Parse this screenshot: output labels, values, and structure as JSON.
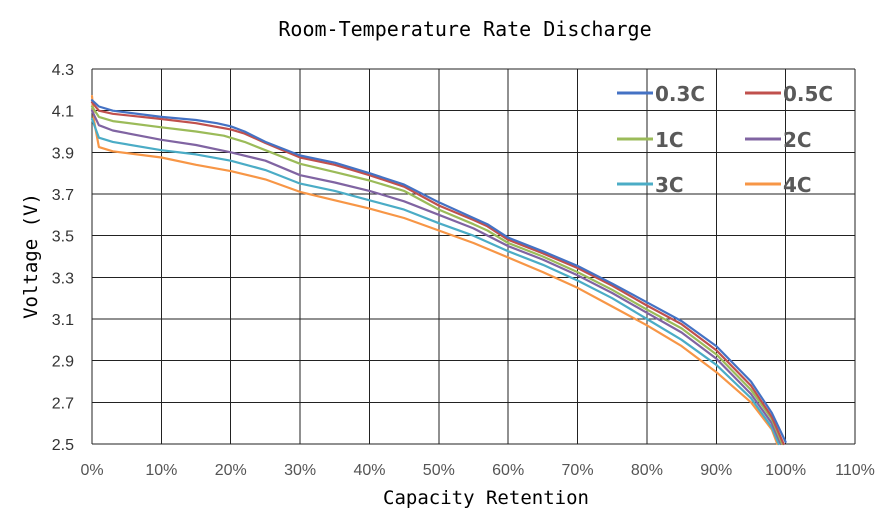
{
  "chart_data": {
    "type": "line",
    "title": "Room-Temperature Rate Discharge",
    "xlabel": "Capacity Retention",
    "ylabel": "Voltage (V)",
    "xlim": [
      0,
      110
    ],
    "ylim": [
      2.5,
      4.3
    ],
    "xticks": [
      0,
      10,
      20,
      30,
      40,
      50,
      60,
      70,
      80,
      90,
      100,
      110
    ],
    "xtick_labels": [
      "0%",
      "10%",
      "20%",
      "30%",
      "40%",
      "50%",
      "60%",
      "70%",
      "80%",
      "90%",
      "100%",
      "110%"
    ],
    "yticks": [
      2.5,
      2.7,
      2.9,
      3.1,
      3.3,
      3.5,
      3.7,
      3.9,
      4.1,
      4.3
    ],
    "ytick_labels": [
      "2.5",
      "2.7",
      "2.9",
      "3.1",
      "3.3",
      "3.5",
      "3.7",
      "3.9",
      "4.1",
      "4.3"
    ],
    "grid": true,
    "legend_position": "top-right",
    "series": [
      {
        "name": "0.3C",
        "color": "#4472C4",
        "points": [
          [
            0,
            4.15
          ],
          [
            1,
            4.12
          ],
          [
            3,
            4.1
          ],
          [
            10,
            4.07
          ],
          [
            15,
            4.055
          ],
          [
            18,
            4.04
          ],
          [
            20,
            4.025
          ],
          [
            22,
            4.0
          ],
          [
            25,
            3.95
          ],
          [
            30,
            3.885
          ],
          [
            35,
            3.85
          ],
          [
            40,
            3.8
          ],
          [
            45,
            3.745
          ],
          [
            50,
            3.66
          ],
          [
            55,
            3.585
          ],
          [
            57,
            3.555
          ],
          [
            60,
            3.49
          ],
          [
            65,
            3.425
          ],
          [
            70,
            3.355
          ],
          [
            75,
            3.27
          ],
          [
            80,
            3.18
          ],
          [
            85,
            3.09
          ],
          [
            90,
            2.97
          ],
          [
            95,
            2.8
          ],
          [
            98,
            2.65
          ],
          [
            100,
            2.51
          ]
        ]
      },
      {
        "name": "0.5C",
        "color": "#C0504D",
        "points": [
          [
            0,
            4.14
          ],
          [
            1,
            4.1
          ],
          [
            3,
            4.085
          ],
          [
            10,
            4.06
          ],
          [
            15,
            4.04
          ],
          [
            20,
            4.01
          ],
          [
            22,
            3.99
          ],
          [
            25,
            3.945
          ],
          [
            30,
            3.875
          ],
          [
            35,
            3.84
          ],
          [
            40,
            3.79
          ],
          [
            45,
            3.735
          ],
          [
            50,
            3.645
          ],
          [
            55,
            3.575
          ],
          [
            57,
            3.545
          ],
          [
            60,
            3.48
          ],
          [
            65,
            3.415
          ],
          [
            70,
            3.345
          ],
          [
            75,
            3.26
          ],
          [
            80,
            3.165
          ],
          [
            85,
            3.075
          ],
          [
            90,
            2.95
          ],
          [
            95,
            2.78
          ],
          [
            98,
            2.63
          ],
          [
            99.7,
            2.5
          ]
        ]
      },
      {
        "name": "1C",
        "color": "#9BBB59",
        "points": [
          [
            0,
            4.12
          ],
          [
            1,
            4.07
          ],
          [
            3,
            4.05
          ],
          [
            10,
            4.02
          ],
          [
            15,
            4.0
          ],
          [
            19,
            3.98
          ],
          [
            22,
            3.95
          ],
          [
            25,
            3.91
          ],
          [
            30,
            3.845
          ],
          [
            35,
            3.805
          ],
          [
            40,
            3.765
          ],
          [
            45,
            3.715
          ],
          [
            50,
            3.625
          ],
          [
            55,
            3.555
          ],
          [
            57,
            3.525
          ],
          [
            60,
            3.465
          ],
          [
            65,
            3.4
          ],
          [
            70,
            3.325
          ],
          [
            75,
            3.24
          ],
          [
            80,
            3.145
          ],
          [
            85,
            3.055
          ],
          [
            90,
            2.93
          ],
          [
            95,
            2.76
          ],
          [
            98,
            2.62
          ],
          [
            99.5,
            2.5
          ]
        ]
      },
      {
        "name": "2C",
        "color": "#8064A2",
        "points": [
          [
            0,
            4.1
          ],
          [
            1,
            4.03
          ],
          [
            3,
            4.005
          ],
          [
            10,
            3.96
          ],
          [
            15,
            3.935
          ],
          [
            20,
            3.9
          ],
          [
            25,
            3.86
          ],
          [
            30,
            3.79
          ],
          [
            35,
            3.755
          ],
          [
            40,
            3.715
          ],
          [
            45,
            3.665
          ],
          [
            50,
            3.6
          ],
          [
            55,
            3.535
          ],
          [
            60,
            3.45
          ],
          [
            65,
            3.385
          ],
          [
            70,
            3.31
          ],
          [
            75,
            3.225
          ],
          [
            80,
            3.13
          ],
          [
            85,
            3.035
          ],
          [
            90,
            2.91
          ],
          [
            95,
            2.74
          ],
          [
            98,
            2.6
          ],
          [
            99.3,
            2.5
          ]
        ]
      },
      {
        "name": "3C",
        "color": "#4BACC6",
        "points": [
          [
            0,
            4.06
          ],
          [
            1,
            3.97
          ],
          [
            3,
            3.95
          ],
          [
            10,
            3.91
          ],
          [
            15,
            3.89
          ],
          [
            20,
            3.86
          ],
          [
            25,
            3.815
          ],
          [
            30,
            3.75
          ],
          [
            35,
            3.715
          ],
          [
            40,
            3.67
          ],
          [
            45,
            3.625
          ],
          [
            50,
            3.56
          ],
          [
            55,
            3.5
          ],
          [
            60,
            3.425
          ],
          [
            65,
            3.36
          ],
          [
            70,
            3.285
          ],
          [
            75,
            3.2
          ],
          [
            80,
            3.1
          ],
          [
            85,
            3.0
          ],
          [
            90,
            2.88
          ],
          [
            95,
            2.72
          ],
          [
            98,
            2.58
          ],
          [
            99,
            2.5
          ]
        ]
      },
      {
        "name": "4C",
        "color": "#F79646",
        "points": [
          [
            0,
            4.17
          ],
          [
            0.3,
            4.05
          ],
          [
            1,
            3.925
          ],
          [
            3,
            3.905
          ],
          [
            10,
            3.875
          ],
          [
            15,
            3.84
          ],
          [
            20,
            3.81
          ],
          [
            25,
            3.77
          ],
          [
            30,
            3.71
          ],
          [
            35,
            3.67
          ],
          [
            40,
            3.63
          ],
          [
            45,
            3.585
          ],
          [
            50,
            3.525
          ],
          [
            55,
            3.465
          ],
          [
            60,
            3.395
          ],
          [
            65,
            3.325
          ],
          [
            70,
            3.25
          ],
          [
            75,
            3.16
          ],
          [
            80,
            3.07
          ],
          [
            85,
            2.97
          ],
          [
            90,
            2.845
          ],
          [
            95,
            2.7
          ],
          [
            98,
            2.57
          ],
          [
            98.8,
            2.5
          ]
        ]
      }
    ]
  }
}
